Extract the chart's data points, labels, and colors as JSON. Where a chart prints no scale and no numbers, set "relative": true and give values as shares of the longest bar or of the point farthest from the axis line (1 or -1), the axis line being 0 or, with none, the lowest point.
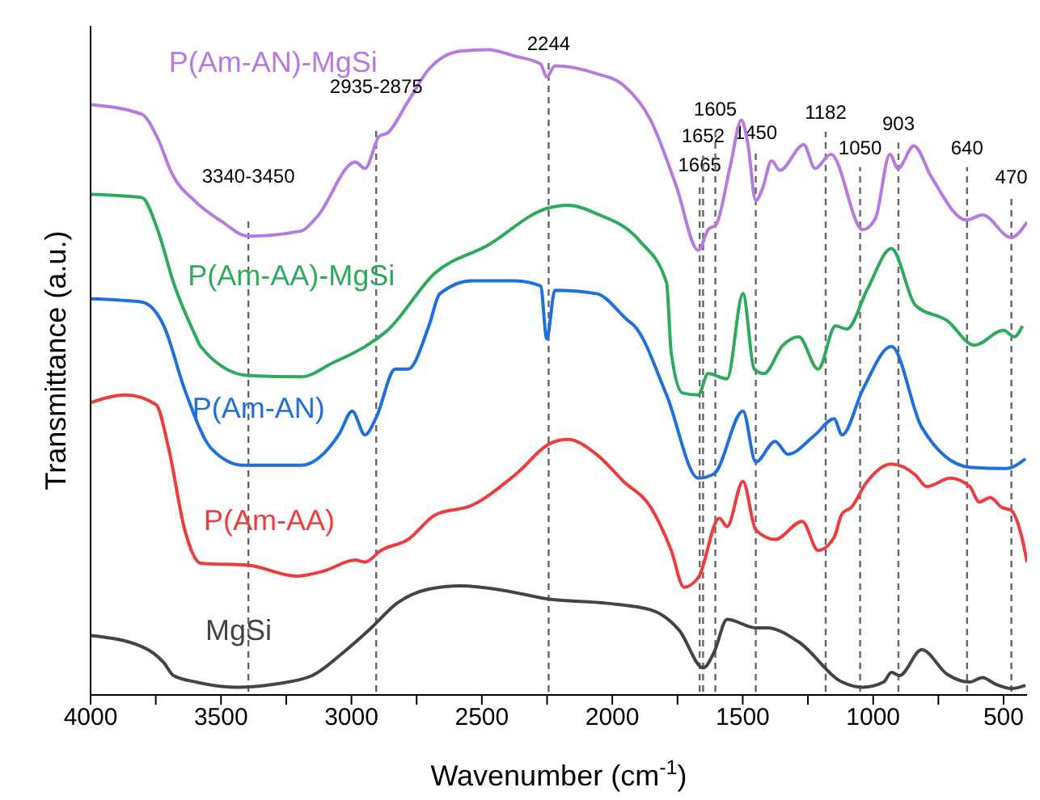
{
  "chart_data": {
    "type": "line",
    "relative": true,
    "xlabel": "Wavenumber (cm$^{-1}$)",
    "ylabel": "Transmittance (a.u.)",
    "xlim": [
      4000,
      410
    ],
    "xticks": [
      4000,
      {
        "value": 3750,
        "label": null
      },
      3500,
      {
        "value": 3250,
        "label": null
      },
      3000,
      {
        "value": 2750,
        "label": null
      },
      2500,
      {
        "value": 2250,
        "label": null
      },
      2000,
      {
        "value": 1750,
        "label": null
      },
      1500,
      {
        "value": 1250,
        "label": null
      },
      1000,
      {
        "value": 750,
        "label": null
      },
      500
    ],
    "marker": "none",
    "line_style": "solid",
    "series": [
      {
        "name": "P(Am-AN)-MgSi",
        "color": "#b57be0",
        "x": [
          4000,
          3804,
          3743,
          3688,
          3596,
          3498,
          3395,
          3193,
          3132,
          2985,
          2948,
          2893,
          2862,
          2783,
          2703,
          2581,
          2477,
          2373,
          2275,
          2251,
          2220,
          2061,
          1957,
          1853,
          1755,
          1670,
          1633,
          1602,
          1547,
          1505,
          1480,
          1450,
          1425,
          1389,
          1358,
          1266,
          1223,
          1162,
          1040,
          991,
          936,
          905,
          844,
          777,
          642,
          581,
          471,
          410
        ],
        "values": [
          0.915,
          0.9,
          0.863,
          0.808,
          0.764,
          0.734,
          0.711,
          0.719,
          0.741,
          0.826,
          0.816,
          0.866,
          0.871,
          0.92,
          0.97,
          0.998,
          1.0,
          0.99,
          0.978,
          0.958,
          0.975,
          0.963,
          0.945,
          0.891,
          0.789,
          0.689,
          0.721,
          0.729,
          0.821,
          0.891,
          0.853,
          0.766,
          0.784,
          0.828,
          0.813,
          0.853,
          0.816,
          0.838,
          0.721,
          0.739,
          0.838,
          0.816,
          0.851,
          0.803,
          0.736,
          0.744,
          0.709,
          0.733
        ]
      },
      {
        "name": "P(Am-AA)-MgSi",
        "color": "#2eaa5e",
        "x": [
          4000,
          3804,
          3743,
          3682,
          3596,
          3578,
          3395,
          3193,
          3070,
          2948,
          2862,
          2679,
          2477,
          2251,
          2171,
          2061,
          1896,
          1792,
          1774,
          1731,
          1670,
          1633,
          1560,
          1499,
          1456,
          1419,
          1346,
          1285,
          1211,
          1144,
          1101,
          1022,
          930,
          838,
          716,
          612,
          501,
          459,
          428
        ],
        "values": [
          0.776,
          0.771,
          0.721,
          0.639,
          0.555,
          0.54,
          0.495,
          0.493,
          0.515,
          0.54,
          0.565,
          0.654,
          0.697,
          0.754,
          0.759,
          0.746,
          0.704,
          0.639,
          0.53,
          0.468,
          0.465,
          0.498,
          0.49,
          0.622,
          0.505,
          0.498,
          0.542,
          0.555,
          0.505,
          0.572,
          0.567,
          0.629,
          0.692,
          0.604,
          0.58,
          0.542,
          0.565,
          0.555,
          0.572
        ]
      },
      {
        "name": "P(Am-AN)",
        "color": "#1f6fdf",
        "x": [
          4000,
          3804,
          3719,
          3639,
          3535,
          3413,
          3193,
          3046,
          2997,
          2948,
          2905,
          2832,
          2783,
          2703,
          2661,
          2538,
          2373,
          2275,
          2251,
          2220,
          2061,
          1939,
          1915,
          1792,
          1670,
          1609,
          1499,
          1450,
          1376,
          1327,
          1223,
          1150,
          1119,
          1040,
          930,
          814,
          630,
          490,
          416
        ],
        "values": [
          0.614,
          0.609,
          0.572,
          0.473,
          0.381,
          0.356,
          0.356,
          0.405,
          0.44,
          0.403,
          0.43,
          0.505,
          0.505,
          0.572,
          0.622,
          0.642,
          0.642,
          0.634,
          0.552,
          0.627,
          0.622,
          0.58,
          0.572,
          0.465,
          0.336,
          0.343,
          0.44,
          0.361,
          0.393,
          0.373,
          0.403,
          0.428,
          0.403,
          0.473,
          0.54,
          0.415,
          0.353,
          0.351,
          0.366
        ]
      },
      {
        "name": "P(Am-AA)",
        "color": "#ee3b3b",
        "x": [
          4000,
          3865,
          3749,
          3700,
          3639,
          3578,
          3395,
          3211,
          3107,
          2985,
          2948,
          2887,
          2783,
          2679,
          2538,
          2373,
          2232,
          2171,
          2061,
          1957,
          1853,
          1774,
          1725,
          1670,
          1590,
          1560,
          1499,
          1450,
          1376,
          1272,
          1211,
          1150,
          1119,
          1083,
          1028,
          930,
          838,
          795,
          704,
          630,
          593,
          551,
          508,
          471,
          428,
          410
        ],
        "values": [
          0.453,
          0.465,
          0.45,
          0.381,
          0.256,
          0.204,
          0.201,
          0.184,
          0.192,
          0.209,
          0.206,
          0.224,
          0.241,
          0.279,
          0.294,
          0.341,
          0.391,
          0.396,
          0.373,
          0.331,
          0.291,
          0.224,
          0.167,
          0.182,
          0.274,
          0.261,
          0.331,
          0.256,
          0.241,
          0.269,
          0.224,
          0.244,
          0.281,
          0.291,
          0.328,
          0.358,
          0.341,
          0.323,
          0.336,
          0.323,
          0.299,
          0.306,
          0.291,
          0.286,
          0.241,
          0.206
        ]
      },
      {
        "name": "MgSi",
        "color": "#444444",
        "x": [
          4000,
          3804,
          3719,
          3682,
          3596,
          3437,
          3291,
          3150,
          3028,
          2924,
          2826,
          2703,
          2581,
          2416,
          2251,
          2018,
          1853,
          1743,
          1651,
          1609,
          1560,
          1450,
          1407,
          1285,
          1119,
          1040,
          960,
          930,
          899,
          814,
          716,
          630,
          581,
          532,
          471,
          416
        ],
        "values": [
          0.092,
          0.075,
          0.05,
          0.03,
          0.02,
          0.012,
          0.017,
          0.03,
          0.067,
          0.104,
          0.142,
          0.164,
          0.169,
          0.162,
          0.149,
          0.142,
          0.132,
          0.1,
          0.042,
          0.067,
          0.117,
          0.104,
          0.104,
          0.082,
          0.02,
          0.012,
          0.02,
          0.035,
          0.03,
          0.07,
          0.032,
          0.02,
          0.027,
          0.017,
          0.01,
          0.015
        ]
      }
    ],
    "ref_lines": [
      {
        "axis": "x",
        "value": 3395,
        "color": "#666666",
        "line_style": "dashed"
      },
      {
        "axis": "x",
        "value": 2905,
        "color": "#666666",
        "line_style": "dashed"
      },
      {
        "axis": "x",
        "value": 2244,
        "label": "2244",
        "color": "#666666",
        "line_style": "dashed"
      },
      {
        "axis": "x",
        "value": 1665,
        "label": "1665",
        "color": "#666666",
        "line_style": "dashed"
      },
      {
        "axis": "x",
        "value": 1652,
        "label": "1652",
        "color": "#666666",
        "line_style": "dashed"
      },
      {
        "axis": "x",
        "value": 1605,
        "label": "1605",
        "color": "#666666",
        "line_style": "dashed"
      },
      {
        "axis": "x",
        "value": 1450,
        "label": "1450",
        "color": "#666666",
        "line_style": "dashed"
      },
      {
        "axis": "x",
        "value": 1182,
        "label": "1182",
        "color": "#666666",
        "line_style": "dashed"
      },
      {
        "axis": "x",
        "value": 1050,
        "label": "1050",
        "color": "#666666",
        "line_style": "dashed"
      },
      {
        "axis": "x",
        "value": 903,
        "label": "903",
        "color": "#666666",
        "line_style": "dashed"
      },
      {
        "axis": "x",
        "value": 640,
        "label": "640",
        "color": "#666666",
        "line_style": "dashed"
      },
      {
        "axis": "x",
        "value": 470,
        "label": "470",
        "color": "#666666",
        "line_style": "dashed"
      }
    ],
    "annotations": [
      "3340-3450",
      "2935-2875"
    ]
  }
}
